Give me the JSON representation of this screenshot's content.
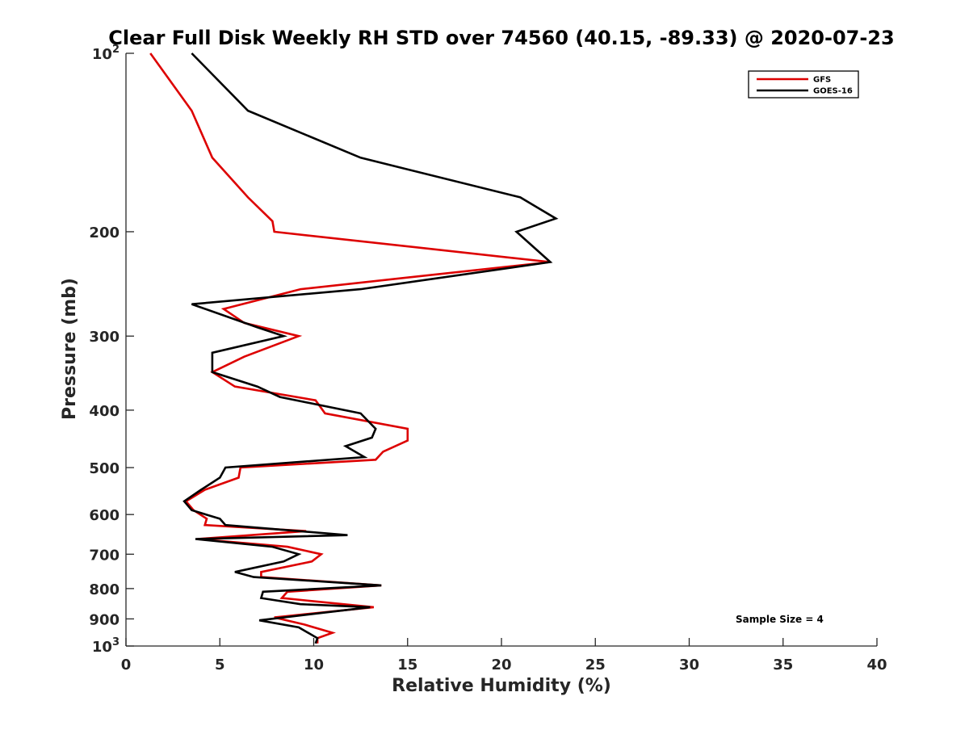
{
  "chart_data": {
    "type": "line",
    "title": "Clear Full Disk Weekly RH STD over 74560 (40.15, -89.33) @ 2020-07-23",
    "xlabel": "Relative Humidity (%)",
    "ylabel": "Pressure (mb)",
    "xlim": [
      0,
      40
    ],
    "ylim": [
      100,
      1000
    ],
    "yscale": "log",
    "y_reversed": true,
    "grid": false,
    "legend_position": "top-right",
    "x_ticks": [
      0,
      5,
      10,
      15,
      20,
      25,
      30,
      35,
      40
    ],
    "y_ticks": [
      {
        "value": 100,
        "base": "10",
        "exp": "2"
      },
      {
        "value": 200,
        "label": "200"
      },
      {
        "value": 300,
        "label": "300"
      },
      {
        "value": 400,
        "label": "400"
      },
      {
        "value": 500,
        "label": "500"
      },
      {
        "value": 600,
        "label": "600"
      },
      {
        "value": 700,
        "label": "700"
      },
      {
        "value": 800,
        "label": "800"
      },
      {
        "value": 900,
        "label": "900"
      },
      {
        "value": 1000,
        "base": "10",
        "exp": "3"
      }
    ],
    "annotation": "Sample Size = 4",
    "series": [
      {
        "name": "GFS",
        "color": "#dd0000",
        "points": [
          [
            1.3,
            100
          ],
          [
            3.5,
            125
          ],
          [
            4.6,
            150
          ],
          [
            6.5,
            175
          ],
          [
            7.8,
            192
          ],
          [
            7.9,
            200
          ],
          [
            22.6,
            225
          ],
          [
            9.3,
            250
          ],
          [
            5.2,
            270
          ],
          [
            6.3,
            285
          ],
          [
            9.2,
            300
          ],
          [
            6.3,
            325
          ],
          [
            4.6,
            345
          ],
          [
            5.8,
            365
          ],
          [
            10.1,
            385
          ],
          [
            10.6,
            405
          ],
          [
            15.0,
            430
          ],
          [
            15.0,
            450
          ],
          [
            13.7,
            470
          ],
          [
            13.3,
            485
          ],
          [
            6.1,
            500
          ],
          [
            6.0,
            520
          ],
          [
            4.2,
            545
          ],
          [
            3.2,
            570
          ],
          [
            3.6,
            590
          ],
          [
            4.3,
            610
          ],
          [
            4.2,
            625
          ],
          [
            9.6,
            640
          ],
          [
            3.8,
            660
          ],
          [
            8.6,
            680
          ],
          [
            10.4,
            700
          ],
          [
            9.9,
            720
          ],
          [
            7.2,
            750
          ],
          [
            7.2,
            765
          ],
          [
            13.6,
            790
          ],
          [
            8.6,
            810
          ],
          [
            8.3,
            830
          ],
          [
            13.2,
            860
          ],
          [
            7.9,
            895
          ],
          [
            9.5,
            920
          ],
          [
            11.0,
            950
          ],
          [
            10.2,
            970
          ],
          [
            10.2,
            990
          ]
        ]
      },
      {
        "name": "GOES-16",
        "color": "#000000",
        "points": [
          [
            3.5,
            100
          ],
          [
            6.5,
            125
          ],
          [
            12.5,
            150
          ],
          [
            21.0,
            175
          ],
          [
            22.9,
            190
          ],
          [
            20.8,
            200
          ],
          [
            22.6,
            225
          ],
          [
            12.5,
            250
          ],
          [
            3.5,
            265
          ],
          [
            7.0,
            290
          ],
          [
            8.4,
            300
          ],
          [
            4.6,
            320
          ],
          [
            4.6,
            345
          ],
          [
            7.0,
            365
          ],
          [
            8.2,
            380
          ],
          [
            12.5,
            405
          ],
          [
            13.3,
            430
          ],
          [
            13.1,
            445
          ],
          [
            11.7,
            460
          ],
          [
            12.7,
            480
          ],
          [
            5.3,
            500
          ],
          [
            5.0,
            520
          ],
          [
            4.0,
            545
          ],
          [
            3.1,
            570
          ],
          [
            3.5,
            590
          ],
          [
            5.0,
            610
          ],
          [
            5.3,
            625
          ],
          [
            11.8,
            650
          ],
          [
            3.7,
            660
          ],
          [
            7.8,
            680
          ],
          [
            9.2,
            700
          ],
          [
            8.4,
            720
          ],
          [
            5.8,
            750
          ],
          [
            6.8,
            765
          ],
          [
            13.6,
            790
          ],
          [
            7.3,
            810
          ],
          [
            7.2,
            830
          ],
          [
            9.3,
            850
          ],
          [
            13.0,
            860
          ],
          [
            7.1,
            905
          ],
          [
            9.2,
            930
          ],
          [
            10.2,
            970
          ],
          [
            10.1,
            990
          ]
        ]
      }
    ]
  }
}
